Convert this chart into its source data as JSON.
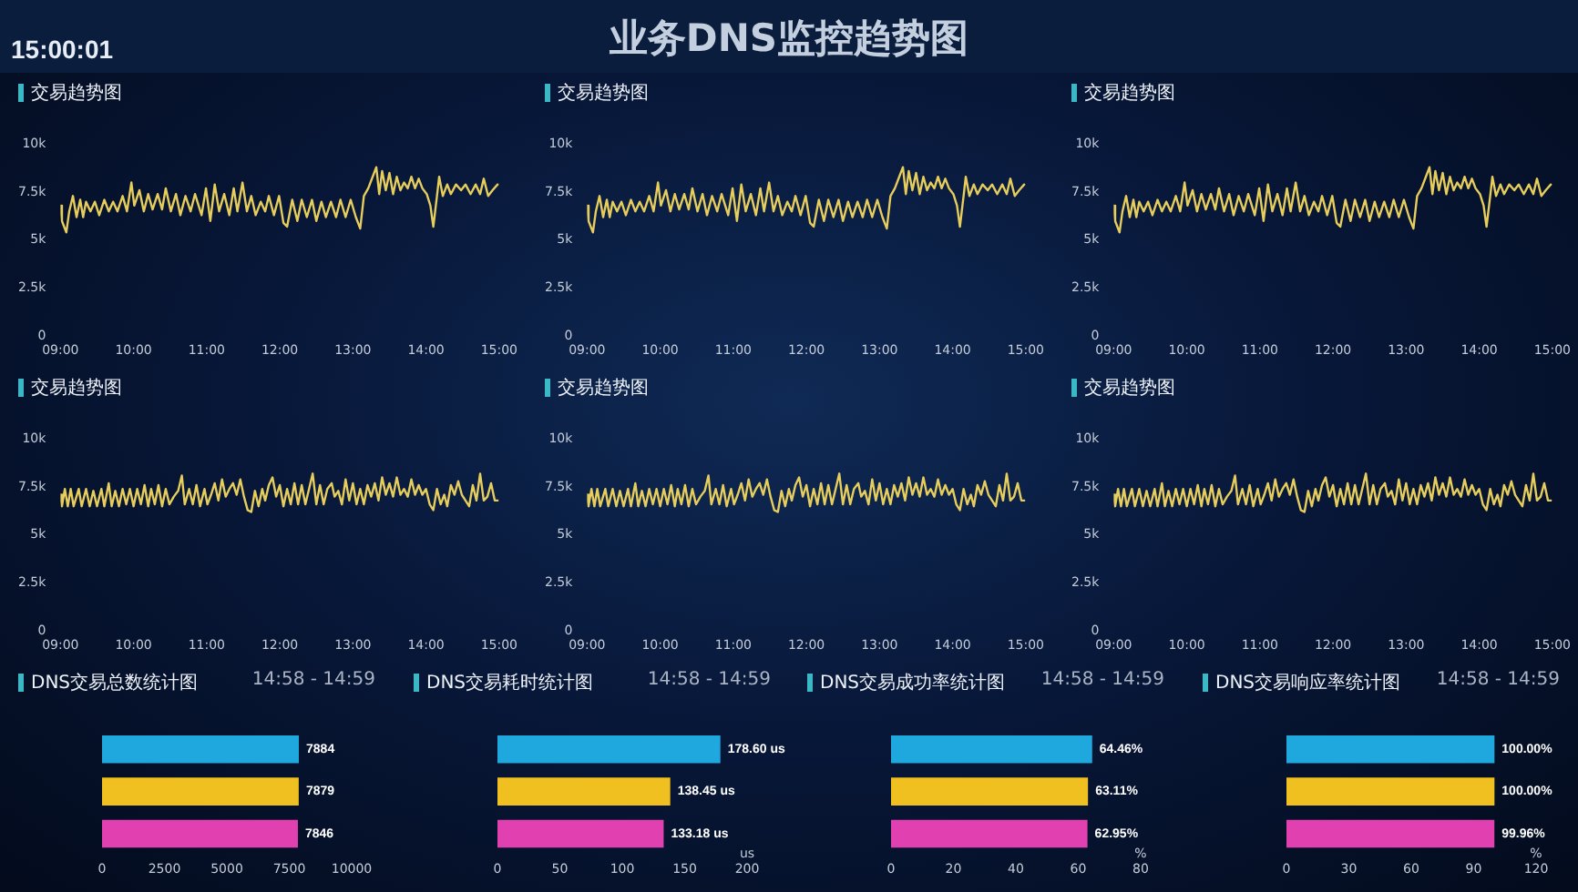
{
  "chart_data": [
    {
      "type": "other",
      "title": "业务DNS监控趋势图",
      "annotations": [
        "15:00:01"
      ]
    },
    {
      "type": "line",
      "title": "交易趋势图",
      "color": "#e6cd5c",
      "xlim": [
        9,
        15
      ],
      "ylim": [
        0,
        10000
      ],
      "xticks": [
        {
          "value": 9,
          "label": "09:00"
        },
        {
          "value": 10,
          "label": "10:00"
        },
        {
          "value": 11,
          "label": "11:00"
        },
        {
          "value": 12,
          "label": "12:00"
        },
        {
          "value": 13,
          "label": "13:00"
        },
        {
          "value": 14,
          "label": "14:00"
        },
        {
          "value": 15,
          "label": "15:00"
        }
      ],
      "yticks": [
        {
          "value": 0,
          "label": "0"
        },
        {
          "value": 2500,
          "label": "2.5k"
        },
        {
          "value": 5000,
          "label": "5k"
        },
        {
          "value": 7500,
          "label": "7.5k"
        },
        {
          "value": 10000,
          "label": "10k"
        }
      ],
      "x": [
        9.0,
        9.02,
        9.08,
        9.12,
        9.17,
        9.22,
        9.27,
        9.31,
        9.35,
        9.41,
        9.47,
        9.53,
        9.6,
        9.66,
        9.72,
        9.78,
        9.85,
        9.91,
        9.97,
        10.01,
        10.08,
        10.14,
        10.2,
        10.26,
        10.33,
        10.39,
        10.44,
        10.51,
        10.58,
        10.64,
        10.71,
        10.78,
        10.84,
        10.93,
        10.99,
        11.05,
        11.11,
        11.17,
        11.24,
        11.31,
        11.37,
        11.42,
        11.49,
        11.55,
        11.61,
        11.67,
        11.74,
        11.8,
        11.85,
        11.92,
        11.99,
        12.05,
        12.1,
        12.17,
        12.24,
        12.3,
        12.37,
        12.44,
        12.5,
        12.57,
        12.63,
        12.7,
        12.77,
        12.83,
        12.9,
        12.97,
        13.04,
        13.1,
        13.15,
        13.21,
        13.27,
        13.32,
        13.36,
        13.4,
        13.45,
        13.5,
        13.55,
        13.6,
        13.65,
        13.7,
        13.75,
        13.8,
        13.85,
        13.9,
        13.95,
        14.01,
        14.06,
        14.1,
        14.15,
        14.18,
        14.23,
        14.29,
        14.34,
        14.41,
        14.48,
        14.54,
        14.61,
        14.68,
        14.74,
        14.79,
        14.85,
        14.91,
        14.98
      ],
      "values": [
        6800,
        6000,
        5400,
        6500,
        7300,
        6200,
        7100,
        6200,
        7000,
        6500,
        7000,
        6300,
        7100,
        6500,
        7000,
        6500,
        7300,
        6500,
        8000,
        6800,
        7600,
        6500,
        7400,
        6600,
        7400,
        6600,
        7700,
        6500,
        7400,
        6300,
        7300,
        6500,
        7400,
        6300,
        7700,
        6000,
        7900,
        6500,
        7400,
        6300,
        7700,
        6500,
        8000,
        6500,
        7300,
        6300,
        7000,
        6500,
        7300,
        6300,
        7300,
        5900,
        5700,
        7100,
        6000,
        7100,
        6200,
        7100,
        6000,
        7000,
        6200,
        7000,
        6200,
        7100,
        6200,
        7100,
        6200,
        5600,
        7300,
        7700,
        8300,
        8800,
        7400,
        8600,
        7600,
        8500,
        7400,
        8300,
        7600,
        8000,
        7700,
        8300,
        7700,
        8200,
        7700,
        7400,
        6800,
        5700,
        7300,
        8300,
        7300,
        7900,
        7400,
        7900,
        7600,
        7900,
        7400,
        7900,
        7400,
        8200,
        7300,
        7600,
        7900
      ]
    },
    {
      "type": "line",
      "title": "交易趋势图",
      "color": "#e6cd5c",
      "xlim": [
        9,
        15
      ],
      "ylim": [
        0,
        10000
      ],
      "xticks": [
        {
          "value": 9,
          "label": "09:00"
        },
        {
          "value": 10,
          "label": "10:00"
        },
        {
          "value": 11,
          "label": "11:00"
        },
        {
          "value": 12,
          "label": "12:00"
        },
        {
          "value": 13,
          "label": "13:00"
        },
        {
          "value": 14,
          "label": "14:00"
        },
        {
          "value": 15,
          "label": "15:00"
        }
      ],
      "yticks": [
        {
          "value": 0,
          "label": "0"
        },
        {
          "value": 2500,
          "label": "2.5k"
        },
        {
          "value": 5000,
          "label": "5k"
        },
        {
          "value": 7500,
          "label": "7.5k"
        },
        {
          "value": 10000,
          "label": "10k"
        }
      ],
      "x": [
        9.0,
        9.02,
        9.08,
        9.12,
        9.17,
        9.22,
        9.27,
        9.31,
        9.35,
        9.41,
        9.47,
        9.53,
        9.6,
        9.66,
        9.72,
        9.78,
        9.85,
        9.91,
        9.97,
        10.01,
        10.08,
        10.14,
        10.2,
        10.26,
        10.33,
        10.39,
        10.44,
        10.51,
        10.58,
        10.64,
        10.71,
        10.78,
        10.84,
        10.93,
        10.99,
        11.05,
        11.11,
        11.17,
        11.24,
        11.31,
        11.37,
        11.42,
        11.49,
        11.55,
        11.61,
        11.67,
        11.74,
        11.8,
        11.85,
        11.92,
        11.99,
        12.05,
        12.1,
        12.17,
        12.24,
        12.3,
        12.37,
        12.44,
        12.5,
        12.57,
        12.63,
        12.7,
        12.77,
        12.83,
        12.9,
        12.97,
        13.04,
        13.1,
        13.15,
        13.21,
        13.27,
        13.32,
        13.36,
        13.4,
        13.45,
        13.5,
        13.55,
        13.6,
        13.65,
        13.7,
        13.75,
        13.8,
        13.85,
        13.9,
        13.95,
        14.01,
        14.06,
        14.1,
        14.15,
        14.18,
        14.23,
        14.29,
        14.34,
        14.41,
        14.48,
        14.54,
        14.61,
        14.68,
        14.74,
        14.79,
        14.85,
        14.91,
        14.98
      ],
      "values": [
        6800,
        6000,
        5400,
        6500,
        7300,
        6200,
        7100,
        6200,
        7000,
        6500,
        7000,
        6300,
        7100,
        6500,
        7000,
        6500,
        7300,
        6500,
        8000,
        6800,
        7600,
        6500,
        7400,
        6600,
        7400,
        6600,
        7700,
        6500,
        7400,
        6300,
        7300,
        6500,
        7400,
        6300,
        7700,
        6000,
        7900,
        6500,
        7400,
        6300,
        7700,
        6500,
        8000,
        6500,
        7300,
        6300,
        7000,
        6500,
        7300,
        6300,
        7300,
        5900,
        5700,
        7100,
        6000,
        7100,
        6200,
        7100,
        6000,
        7000,
        6200,
        7000,
        6200,
        7100,
        6200,
        7100,
        6200,
        5600,
        7300,
        7700,
        8300,
        8800,
        7400,
        8600,
        7600,
        8500,
        7400,
        8300,
        7600,
        8000,
        7700,
        8300,
        7700,
        8200,
        7700,
        7400,
        6800,
        5700,
        7300,
        8300,
        7300,
        7900,
        7400,
        7900,
        7600,
        7900,
        7400,
        7900,
        7400,
        8200,
        7300,
        7600,
        7900
      ]
    },
    {
      "type": "line",
      "title": "交易趋势图",
      "color": "#e6cd5c",
      "xlim": [
        9,
        15
      ],
      "ylim": [
        0,
        10000
      ],
      "xticks": [
        {
          "value": 9,
          "label": "09:00"
        },
        {
          "value": 10,
          "label": "10:00"
        },
        {
          "value": 11,
          "label": "11:00"
        },
        {
          "value": 12,
          "label": "12:00"
        },
        {
          "value": 13,
          "label": "13:00"
        },
        {
          "value": 14,
          "label": "14:00"
        },
        {
          "value": 15,
          "label": "15:00"
        }
      ],
      "yticks": [
        {
          "value": 0,
          "label": "0"
        },
        {
          "value": 2500,
          "label": "2.5k"
        },
        {
          "value": 5000,
          "label": "5k"
        },
        {
          "value": 7500,
          "label": "7.5k"
        },
        {
          "value": 10000,
          "label": "10k"
        }
      ],
      "x": [
        9.0,
        9.02,
        9.08,
        9.12,
        9.17,
        9.22,
        9.27,
        9.31,
        9.35,
        9.41,
        9.47,
        9.53,
        9.6,
        9.66,
        9.72,
        9.78,
        9.85,
        9.91,
        9.97,
        10.01,
        10.08,
        10.14,
        10.2,
        10.26,
        10.33,
        10.39,
        10.44,
        10.51,
        10.58,
        10.64,
        10.71,
        10.78,
        10.84,
        10.93,
        10.99,
        11.05,
        11.11,
        11.17,
        11.24,
        11.31,
        11.37,
        11.42,
        11.49,
        11.55,
        11.61,
        11.67,
        11.74,
        11.8,
        11.85,
        11.92,
        11.99,
        12.05,
        12.1,
        12.17,
        12.24,
        12.3,
        12.37,
        12.44,
        12.5,
        12.57,
        12.63,
        12.7,
        12.77,
        12.83,
        12.9,
        12.97,
        13.04,
        13.1,
        13.15,
        13.21,
        13.27,
        13.32,
        13.36,
        13.4,
        13.45,
        13.5,
        13.55,
        13.6,
        13.65,
        13.7,
        13.75,
        13.8,
        13.85,
        13.9,
        13.95,
        14.01,
        14.06,
        14.1,
        14.15,
        14.18,
        14.23,
        14.29,
        14.34,
        14.41,
        14.48,
        14.54,
        14.61,
        14.68,
        14.74,
        14.79,
        14.85,
        14.91,
        14.98
      ],
      "values": [
        6800,
        6000,
        5400,
        6500,
        7300,
        6200,
        7100,
        6200,
        7000,
        6500,
        7000,
        6300,
        7100,
        6500,
        7000,
        6500,
        7300,
        6500,
        8000,
        6800,
        7600,
        6500,
        7400,
        6600,
        7400,
        6600,
        7700,
        6500,
        7400,
        6300,
        7300,
        6500,
        7400,
        6300,
        7700,
        6000,
        7900,
        6500,
        7400,
        6300,
        7700,
        6500,
        8000,
        6500,
        7300,
        6300,
        7000,
        6500,
        7300,
        6300,
        7300,
        5900,
        5700,
        7100,
        6000,
        7100,
        6200,
        7100,
        6000,
        7000,
        6200,
        7000,
        6200,
        7100,
        6200,
        7100,
        6200,
        5600,
        7300,
        7700,
        8300,
        8800,
        7400,
        8600,
        7600,
        8500,
        7400,
        8300,
        7600,
        8000,
        7700,
        8300,
        7700,
        8200,
        7700,
        7400,
        6800,
        5700,
        7300,
        8300,
        7300,
        7900,
        7400,
        7900,
        7600,
        7900,
        7400,
        7900,
        7400,
        8200,
        7300,
        7600,
        7900
      ]
    },
    {
      "type": "line",
      "title": "交易趋势图",
      "color": "#e6cd5c",
      "xlim": [
        9,
        15
      ],
      "ylim": [
        0,
        10000
      ],
      "xticks": [
        {
          "value": 9,
          "label": "09:00"
        },
        {
          "value": 10,
          "label": "10:00"
        },
        {
          "value": 11,
          "label": "11:00"
        },
        {
          "value": 12,
          "label": "12:00"
        },
        {
          "value": 13,
          "label": "13:00"
        },
        {
          "value": 14,
          "label": "14:00"
        },
        {
          "value": 15,
          "label": "15:00"
        }
      ],
      "yticks": [
        {
          "value": 0,
          "label": "0"
        },
        {
          "value": 2500,
          "label": "2.5k"
        },
        {
          "value": 5000,
          "label": "5k"
        },
        {
          "value": 7500,
          "label": "7.5k"
        },
        {
          "value": 10000,
          "label": "10k"
        }
      ],
      "x": [
        9.0,
        9.02,
        9.06,
        9.1,
        9.14,
        9.18,
        9.25,
        9.29,
        9.35,
        9.4,
        9.45,
        9.5,
        9.56,
        9.6,
        9.66,
        9.7,
        9.75,
        9.8,
        9.85,
        9.9,
        9.95,
        10.0,
        10.05,
        10.1,
        10.15,
        10.2,
        10.24,
        10.29,
        10.34,
        10.39,
        10.44,
        10.49,
        10.55,
        10.61,
        10.66,
        10.7,
        10.76,
        10.81,
        10.86,
        10.91,
        10.97,
        11.01,
        11.06,
        11.11,
        11.16,
        11.21,
        11.26,
        11.31,
        11.36,
        11.41,
        11.46,
        11.51,
        11.56,
        11.61,
        11.66,
        11.71,
        11.76,
        11.8,
        11.85,
        11.9,
        11.95,
        12.0,
        12.05,
        12.1,
        12.15,
        12.2,
        12.25,
        12.3,
        12.35,
        12.4,
        12.45,
        12.5,
        12.55,
        12.6,
        12.65,
        12.71,
        12.75,
        12.8,
        12.85,
        12.9,
        12.95,
        13.0,
        13.05,
        13.1,
        13.15,
        13.2,
        13.25,
        13.3,
        13.35,
        13.4,
        13.45,
        13.5,
        13.55,
        13.6,
        13.65,
        13.7,
        13.75,
        13.8,
        13.85,
        13.9,
        13.95,
        14.0,
        14.05,
        14.1,
        14.15,
        14.2,
        14.25,
        14.29,
        14.34,
        14.39,
        14.44,
        14.49,
        14.54,
        14.59,
        14.64,
        14.69,
        14.74,
        14.79,
        14.84,
        14.89,
        14.94,
        14.98
      ],
      "values": [
        7100,
        6500,
        7400,
        6500,
        7400,
        6500,
        7400,
        6500,
        7400,
        6500,
        7300,
        6500,
        7400,
        6500,
        7700,
        6500,
        7300,
        6500,
        7400,
        6600,
        7400,
        6500,
        7400,
        6600,
        7600,
        6500,
        7400,
        6600,
        7600,
        6500,
        7400,
        6600,
        7000,
        7300,
        8100,
        6600,
        7400,
        6600,
        7600,
        6500,
        7400,
        6600,
        7100,
        7700,
        6800,
        7900,
        7000,
        7400,
        7700,
        7100,
        7900,
        7000,
        6300,
        6200,
        7300,
        6500,
        7400,
        6800,
        7600,
        8000,
        7000,
        7600,
        6500,
        7400,
        6600,
        7700,
        6600,
        7600,
        6600,
        7400,
        8200,
        6600,
        7600,
        6600,
        7400,
        7700,
        7000,
        7300,
        6600,
        7900,
        6800,
        7700,
        6600,
        7400,
        6600,
        7600,
        7000,
        7700,
        6800,
        8000,
        7100,
        7700,
        7000,
        8000,
        7100,
        7400,
        7000,
        7900,
        7100,
        7600,
        7100,
        7400,
        6600,
        6300,
        7400,
        6600,
        7100,
        6500,
        7600,
        7100,
        7800,
        7100,
        6800,
        6500,
        7600,
        6800,
        8200,
        6800,
        7000,
        7700,
        6800,
        6800
      ]
    },
    {
      "type": "line",
      "title": "交易趋势图",
      "color": "#e6cd5c",
      "xlim": [
        9,
        15
      ],
      "ylim": [
        0,
        10000
      ],
      "xticks": [
        {
          "value": 9,
          "label": "09:00"
        },
        {
          "value": 10,
          "label": "10:00"
        },
        {
          "value": 11,
          "label": "11:00"
        },
        {
          "value": 12,
          "label": "12:00"
        },
        {
          "value": 13,
          "label": "13:00"
        },
        {
          "value": 14,
          "label": "14:00"
        },
        {
          "value": 15,
          "label": "15:00"
        }
      ],
      "yticks": [
        {
          "value": 0,
          "label": "0"
        },
        {
          "value": 2500,
          "label": "2.5k"
        },
        {
          "value": 5000,
          "label": "5k"
        },
        {
          "value": 7500,
          "label": "7.5k"
        },
        {
          "value": 10000,
          "label": "10k"
        }
      ],
      "x": [
        9.0,
        9.02,
        9.06,
        9.1,
        9.14,
        9.18,
        9.25,
        9.29,
        9.35,
        9.4,
        9.45,
        9.5,
        9.56,
        9.6,
        9.66,
        9.7,
        9.75,
        9.8,
        9.85,
        9.9,
        9.95,
        10.0,
        10.05,
        10.1,
        10.15,
        10.2,
        10.24,
        10.29,
        10.34,
        10.39,
        10.44,
        10.49,
        10.55,
        10.61,
        10.66,
        10.7,
        10.76,
        10.81,
        10.86,
        10.91,
        10.97,
        11.01,
        11.06,
        11.11,
        11.16,
        11.21,
        11.26,
        11.31,
        11.36,
        11.41,
        11.46,
        11.51,
        11.56,
        11.61,
        11.66,
        11.71,
        11.76,
        11.8,
        11.85,
        11.9,
        11.95,
        12.0,
        12.05,
        12.1,
        12.15,
        12.2,
        12.25,
        12.3,
        12.35,
        12.4,
        12.45,
        12.5,
        12.55,
        12.6,
        12.65,
        12.71,
        12.75,
        12.8,
        12.85,
        12.9,
        12.95,
        13.0,
        13.05,
        13.1,
        13.15,
        13.2,
        13.25,
        13.3,
        13.35,
        13.4,
        13.45,
        13.5,
        13.55,
        13.6,
        13.65,
        13.7,
        13.75,
        13.8,
        13.85,
        13.9,
        13.95,
        14.0,
        14.05,
        14.1,
        14.15,
        14.2,
        14.25,
        14.29,
        14.34,
        14.39,
        14.44,
        14.49,
        14.54,
        14.59,
        14.64,
        14.69,
        14.74,
        14.79,
        14.84,
        14.89,
        14.94,
        14.98
      ],
      "values": [
        7100,
        6500,
        7400,
        6500,
        7400,
        6500,
        7400,
        6500,
        7400,
        6500,
        7300,
        6500,
        7400,
        6500,
        7700,
        6500,
        7300,
        6500,
        7400,
        6600,
        7400,
        6500,
        7400,
        6600,
        7600,
        6500,
        7400,
        6600,
        7600,
        6500,
        7400,
        6600,
        7000,
        7300,
        8100,
        6600,
        7400,
        6600,
        7600,
        6500,
        7400,
        6600,
        7100,
        7700,
        6800,
        7900,
        7000,
        7400,
        7700,
        7100,
        7900,
        7000,
        6300,
        6200,
        7300,
        6500,
        7400,
        6800,
        7600,
        8000,
        7000,
        7600,
        6500,
        7400,
        6600,
        7700,
        6600,
        7600,
        6600,
        7400,
        8200,
        6600,
        7600,
        6600,
        7400,
        7700,
        7000,
        7300,
        6600,
        7900,
        6800,
        7700,
        6600,
        7400,
        6600,
        7600,
        7000,
        7700,
        6800,
        8000,
        7100,
        7700,
        7000,
        8000,
        7100,
        7400,
        7000,
        7900,
        7100,
        7600,
        7100,
        7400,
        6600,
        6300,
        7400,
        6600,
        7100,
        6500,
        7600,
        7100,
        7800,
        7100,
        6800,
        6500,
        7600,
        6800,
        8200,
        6800,
        7000,
        7700,
        6800,
        6800
      ]
    },
    {
      "type": "line",
      "title": "交易趋势图",
      "color": "#e6cd5c",
      "xlim": [
        9,
        15
      ],
      "ylim": [
        0,
        10000
      ],
      "xticks": [
        {
          "value": 9,
          "label": "09:00"
        },
        {
          "value": 10,
          "label": "10:00"
        },
        {
          "value": 11,
          "label": "11:00"
        },
        {
          "value": 12,
          "label": "12:00"
        },
        {
          "value": 13,
          "label": "13:00"
        },
        {
          "value": 14,
          "label": "14:00"
        },
        {
          "value": 15,
          "label": "15:00"
        }
      ],
      "yticks": [
        {
          "value": 0,
          "label": "0"
        },
        {
          "value": 2500,
          "label": "2.5k"
        },
        {
          "value": 5000,
          "label": "5k"
        },
        {
          "value": 7500,
          "label": "7.5k"
        },
        {
          "value": 10000,
          "label": "10k"
        }
      ],
      "x": [
        9.0,
        9.02,
        9.06,
        9.1,
        9.14,
        9.18,
        9.25,
        9.29,
        9.35,
        9.4,
        9.45,
        9.5,
        9.56,
        9.6,
        9.66,
        9.7,
        9.75,
        9.8,
        9.85,
        9.9,
        9.95,
        10.0,
        10.05,
        10.1,
        10.15,
        10.2,
        10.24,
        10.29,
        10.34,
        10.39,
        10.44,
        10.49,
        10.55,
        10.61,
        10.66,
        10.7,
        10.76,
        10.81,
        10.86,
        10.91,
        10.97,
        11.01,
        11.06,
        11.11,
        11.16,
        11.21,
        11.26,
        11.31,
        11.36,
        11.41,
        11.46,
        11.51,
        11.56,
        11.61,
        11.66,
        11.71,
        11.76,
        11.8,
        11.85,
        11.9,
        11.95,
        12.0,
        12.05,
        12.1,
        12.15,
        12.2,
        12.25,
        12.3,
        12.35,
        12.4,
        12.45,
        12.5,
        12.55,
        12.6,
        12.65,
        12.71,
        12.75,
        12.8,
        12.85,
        12.9,
        12.95,
        13.0,
        13.05,
        13.1,
        13.15,
        13.2,
        13.25,
        13.3,
        13.35,
        13.4,
        13.45,
        13.5,
        13.55,
        13.6,
        13.65,
        13.7,
        13.75,
        13.8,
        13.85,
        13.9,
        13.95,
        14.0,
        14.05,
        14.1,
        14.15,
        14.2,
        14.25,
        14.29,
        14.34,
        14.39,
        14.44,
        14.49,
        14.54,
        14.59,
        14.64,
        14.69,
        14.74,
        14.79,
        14.84,
        14.89,
        14.94,
        14.98
      ],
      "values": [
        7100,
        6500,
        7400,
        6500,
        7400,
        6500,
        7400,
        6500,
        7400,
        6500,
        7300,
        6500,
        7400,
        6500,
        7700,
        6500,
        7300,
        6500,
        7400,
        6600,
        7400,
        6500,
        7400,
        6600,
        7600,
        6500,
        7400,
        6600,
        7600,
        6500,
        7400,
        6600,
        7000,
        7300,
        8100,
        6600,
        7400,
        6600,
        7600,
        6500,
        7400,
        6600,
        7100,
        7700,
        6800,
        7900,
        7000,
        7400,
        7700,
        7100,
        7900,
        7000,
        6300,
        6200,
        7300,
        6500,
        7400,
        6800,
        7600,
        8000,
        7000,
        7600,
        6500,
        7400,
        6600,
        7700,
        6600,
        7600,
        6600,
        7400,
        8200,
        6600,
        7600,
        6600,
        7400,
        7700,
        7000,
        7300,
        6600,
        7900,
        6800,
        7700,
        6600,
        7400,
        6600,
        7600,
        7000,
        7700,
        6800,
        8000,
        7100,
        7700,
        7000,
        8000,
        7100,
        7400,
        7000,
        7900,
        7100,
        7600,
        7100,
        7400,
        6600,
        6300,
        7400,
        6600,
        7100,
        6500,
        7600,
        7100,
        7800,
        7100,
        6800,
        6500,
        7600,
        6800,
        8200,
        6800,
        7000,
        7700,
        6800,
        6800
      ]
    },
    {
      "type": "bar",
      "orientation": "horizontal",
      "title": "DNS交易总数统计图",
      "subtitle": "14:58 - 14:59",
      "categories": [
        null,
        null,
        null
      ],
      "values": [
        7884,
        7879,
        7846
      ],
      "colors": [
        "#1fa8de",
        "#f0c020",
        "#e040b0"
      ],
      "xlim": [
        0,
        10000
      ],
      "xticks": [
        0,
        2500,
        5000,
        7500,
        10000
      ],
      "data_labels": true
    },
    {
      "type": "bar",
      "orientation": "horizontal",
      "title": "DNS交易耗时统计图",
      "subtitle": "14:58 - 14:59",
      "xlabel": "us",
      "categories": [
        null,
        null,
        null
      ],
      "values": [
        178.6,
        138.45,
        133.18
      ],
      "value_labels": [
        "178.60 us",
        "138.45 us",
        "133.18 us"
      ],
      "colors": [
        "#1fa8de",
        "#f0c020",
        "#e040b0"
      ],
      "xlim": [
        0,
        200
      ],
      "xticks": [
        0,
        50,
        100,
        150,
        200
      ]
    },
    {
      "type": "bar",
      "orientation": "horizontal",
      "title": "DNS交易成功率统计图",
      "subtitle": "14:58 - 14:59",
      "xlabel": "%",
      "categories": [
        null,
        null,
        null
      ],
      "values": [
        64.46,
        63.11,
        62.95
      ],
      "value_labels": [
        "64.46%",
        "63.11%",
        "62.95%"
      ],
      "colors": [
        "#1fa8de",
        "#f0c020",
        "#e040b0"
      ],
      "xlim": [
        0,
        80
      ],
      "xticks": [
        0,
        20,
        40,
        60,
        80
      ]
    },
    {
      "type": "bar",
      "orientation": "horizontal",
      "title": "DNS交易响应率统计图",
      "subtitle": "14:58 - 14:59",
      "xlabel": "%",
      "categories": [
        null,
        null,
        null
      ],
      "values": [
        100,
        100,
        99.96
      ],
      "value_labels": [
        "100.00%",
        "100.00%",
        "99.96%"
      ],
      "colors": [
        "#1fa8de",
        "#f0c020",
        "#e040b0"
      ],
      "xlim": [
        0,
        120
      ],
      "xticks": [
        0,
        30,
        60,
        90,
        120
      ]
    }
  ]
}
